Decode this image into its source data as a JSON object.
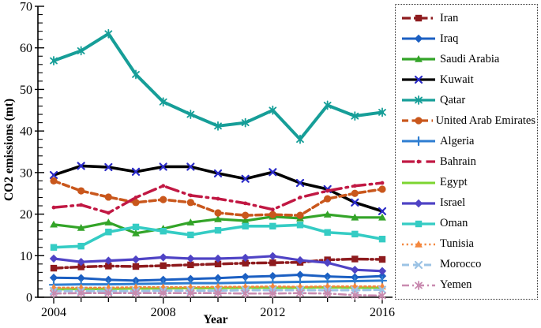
{
  "figure": {
    "y_axis_label": "CO2 emissions (mt)",
    "x_axis_label": "Year"
  },
  "chart_data": {
    "type": "line",
    "title": "",
    "xlabel": "Year",
    "ylabel": "CO2 emissions (mt)",
    "x": [
      2004,
      2005,
      2006,
      2007,
      2008,
      2009,
      2010,
      2011,
      2012,
      2013,
      2014,
      2015,
      2016
    ],
    "x_labeled_ticks": [
      2004,
      2008,
      2012,
      2016
    ],
    "ylim": [
      0,
      70
    ],
    "y_major_ticks": [
      0,
      10,
      20,
      30,
      40,
      50,
      60,
      70
    ],
    "y_minor_step": 2,
    "grid": false,
    "legend_position": "right",
    "series": [
      {
        "name": "Iran",
        "color": "#8E1B1E",
        "dash": "11,4,2.5,4",
        "marker": "square",
        "line_width": 3.5,
        "values": [
          7.0,
          7.3,
          7.5,
          7.4,
          7.6,
          7.8,
          8.0,
          8.2,
          8.3,
          8.4,
          9.0,
          9.2,
          9.1
        ]
      },
      {
        "name": "Iraq",
        "color": "#1B5FC2",
        "dash": "",
        "marker": "diamond",
        "line_width": 3,
        "values": [
          4.7,
          4.6,
          4.2,
          4.0,
          4.2,
          4.4,
          4.6,
          4.9,
          5.1,
          5.4,
          5.0,
          4.8,
          5.1
        ]
      },
      {
        "name": "Saudi Arabia",
        "color": "#33A428",
        "dash": "",
        "marker": "triangle",
        "line_width": 3.2,
        "values": [
          17.5,
          16.7,
          18.0,
          15.4,
          16.5,
          18.0,
          18.8,
          18.4,
          19.4,
          19.0,
          19.9,
          19.2,
          19.2
        ]
      },
      {
        "name": "Kuwait",
        "color": "#000000",
        "dash": "",
        "marker": "x",
        "marker_color": "#2B2BC8",
        "line_width": 3.6,
        "values": [
          29.4,
          31.6,
          31.3,
          30.2,
          31.4,
          31.4,
          29.8,
          28.5,
          30.1,
          27.5,
          26.0,
          22.8,
          20.7
        ]
      },
      {
        "name": "Qatar",
        "color": "#169E98",
        "dash": "",
        "marker": "asterisk",
        "line_width": 4,
        "values": [
          56.9,
          59.3,
          63.4,
          53.6,
          47.0,
          44.0,
          41.2,
          42.0,
          45.0,
          38.0,
          46.2,
          43.6,
          44.5
        ]
      },
      {
        "name": "United Arab Emirates",
        "color": "#C9571C",
        "dash": "8,4.5",
        "marker": "circle",
        "line_width": 3.5,
        "values": [
          28.0,
          25.6,
          24.1,
          22.8,
          23.5,
          22.8,
          20.3,
          19.7,
          19.9,
          19.7,
          23.7,
          25.0,
          26.0
        ]
      },
      {
        "name": "Algeria",
        "color": "#2E7DD1",
        "dash": "",
        "marker": "plus",
        "line_width": 3,
        "values": [
          3.0,
          3.1,
          3.1,
          3.2,
          3.3,
          3.4,
          3.4,
          3.5,
          3.6,
          3.7,
          3.8,
          3.9,
          4.0
        ]
      },
      {
        "name": "Bahrain",
        "color": "#C11843",
        "dash": "16,6,2.5,6",
        "marker": "dot",
        "line_width": 3.5,
        "values": [
          21.6,
          22.2,
          20.3,
          24.0,
          26.8,
          24.5,
          23.7,
          22.6,
          21.1,
          24.0,
          25.6,
          26.8,
          27.5
        ]
      },
      {
        "name": "Egypt",
        "color": "#7CD530",
        "dash": "",
        "marker": "none",
        "line_width": 3,
        "values": [
          1.9,
          2.0,
          2.0,
          2.1,
          2.1,
          2.2,
          2.2,
          2.3,
          2.3,
          2.3,
          2.4,
          2.3,
          2.3
        ]
      },
      {
        "name": "Israel",
        "color": "#4F43C5",
        "dash": "",
        "marker": "diamond",
        "line_width": 3.2,
        "values": [
          9.3,
          8.5,
          8.8,
          9.1,
          9.6,
          9.3,
          9.3,
          9.5,
          9.9,
          8.9,
          8.3,
          6.6,
          6.3
        ]
      },
      {
        "name": "Oman",
        "color": "#35CCC4",
        "dash": "",
        "marker": "square",
        "line_width": 3.6,
        "values": [
          12.0,
          12.3,
          15.7,
          16.9,
          15.9,
          15.0,
          16.1,
          17.1,
          17.1,
          17.4,
          15.6,
          15.2,
          14.0
        ]
      },
      {
        "name": "Tunisia",
        "color": "#F4873E",
        "dash": "2.2,3.5",
        "marker": "triangle",
        "line_width": 2.6,
        "values": [
          2.3,
          2.3,
          2.3,
          2.4,
          2.4,
          2.4,
          2.5,
          2.5,
          2.6,
          2.5,
          2.6,
          2.6,
          2.6
        ]
      },
      {
        "name": "Morocco",
        "color": "#9CC3E5",
        "dash": "9,5",
        "marker": "x",
        "line_width": 3,
        "values": [
          1.5,
          1.5,
          1.5,
          1.5,
          1.6,
          1.6,
          1.6,
          1.7,
          1.7,
          1.7,
          1.7,
          1.7,
          1.8
        ]
      },
      {
        "name": "Yemen",
        "color": "#C98BB0",
        "dash": "9,4,2,4",
        "marker": "asterisk",
        "line_width": 2.6,
        "values": [
          0.9,
          1.0,
          1.0,
          1.0,
          1.0,
          1.0,
          1.0,
          0.9,
          0.9,
          1.0,
          0.9,
          0.5,
          0.4
        ]
      }
    ]
  }
}
